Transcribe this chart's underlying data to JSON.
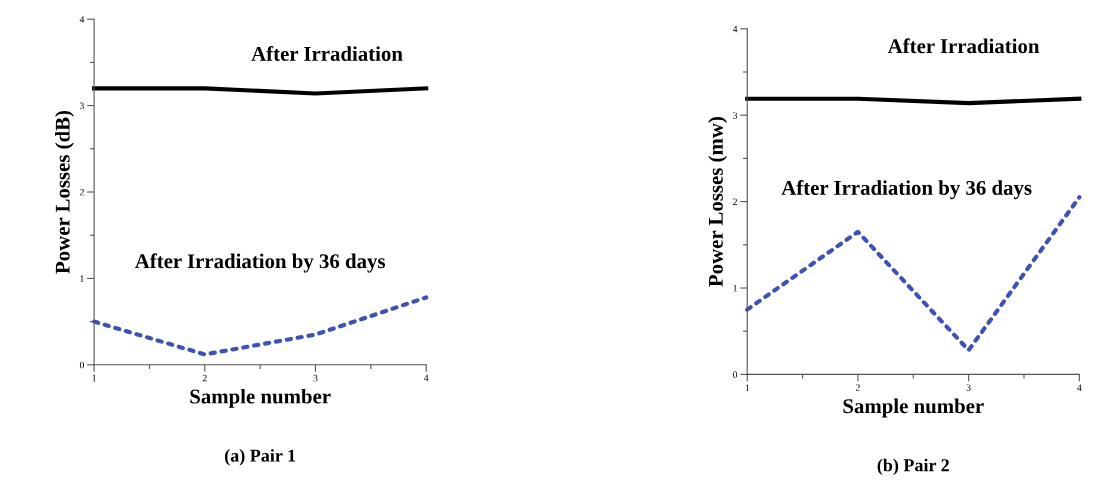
{
  "chart_data": [
    {
      "type": "line",
      "xlabel": "Sample number",
      "ylabel": "Power Losses (dB)",
      "x": [
        1,
        2,
        3,
        4
      ],
      "xlim": [
        1,
        4
      ],
      "ylim": [
        0,
        4
      ],
      "xticks": [
        1,
        {
          "value": 1.5,
          "label": null
        },
        2,
        {
          "value": 2.5,
          "label": null
        },
        3,
        {
          "value": 3.5,
          "label": null
        },
        4
      ],
      "yticks": [
        0,
        {
          "value": 0.5,
          "label": null
        },
        1,
        {
          "value": 1.5,
          "label": null
        },
        2,
        {
          "value": 2.5,
          "label": null
        },
        3,
        {
          "value": 3.5,
          "label": null
        },
        4
      ],
      "grid": false,
      "marker": "none",
      "series": [
        {
          "name": "After Irradiation",
          "color": "#000000",
          "line_style": "solid",
          "values": [
            3.2,
            3.2,
            3.14,
            3.2
          ]
        },
        {
          "name": "After Irradiation by 36 days",
          "color": "#3f51b5",
          "line_style": "dotted",
          "values": [
            0.5,
            0.12,
            0.35,
            0.78
          ]
        }
      ],
      "annotations": [
        "(a) Pair 1"
      ]
    },
    {
      "type": "line",
      "xlabel": "Sample number",
      "ylabel": "Power Losses (mw)",
      "x": [
        1,
        2,
        3,
        4
      ],
      "xlim": [
        1,
        4
      ],
      "ylim": [
        0,
        4
      ],
      "xticks": [
        1,
        {
          "value": 1.5,
          "label": null
        },
        2,
        {
          "value": 2.5,
          "label": null
        },
        3,
        {
          "value": 3.5,
          "label": null
        },
        4
      ],
      "yticks": [
        0,
        {
          "value": 0.5,
          "label": null
        },
        1,
        {
          "value": 1.5,
          "label": null
        },
        2,
        {
          "value": 2.5,
          "label": null
        },
        3,
        {
          "value": 3.5,
          "label": null
        },
        4
      ],
      "grid": false,
      "marker": "none",
      "series": [
        {
          "name": "After Irradiation",
          "color": "#000000",
          "line_style": "solid",
          "values": [
            3.19,
            3.19,
            3.14,
            3.19
          ]
        },
        {
          "name": "After Irradiation by 36 days",
          "color": "#3f51b5",
          "line_style": "dotted",
          "values": [
            0.75,
            1.65,
            0.28,
            2.05
          ]
        }
      ],
      "annotations": [
        "(b) Pair 2"
      ]
    }
  ]
}
